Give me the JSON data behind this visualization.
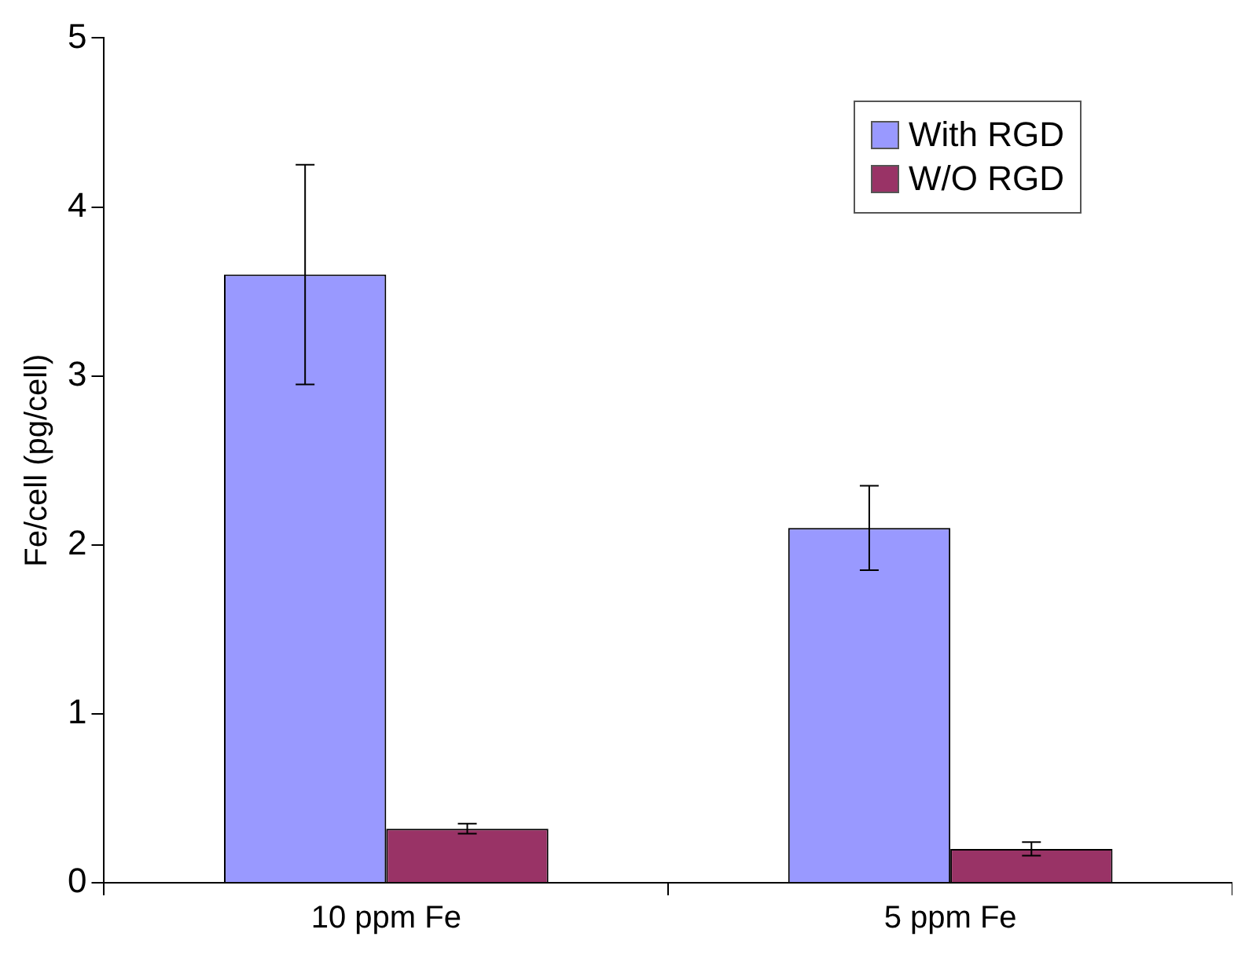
{
  "chart_data": {
    "type": "bar",
    "ylabel": "Fe/cell (pg/cell)",
    "categories": [
      "10 ppm Fe",
      "5 ppm Fe"
    ],
    "series": [
      {
        "name": "With RGD",
        "color": "#9999ff",
        "values": [
          3.6,
          2.1
        ],
        "errors": [
          0.65,
          0.25
        ]
      },
      {
        "name": "W/O RGD",
        "color": "#993366",
        "values": [
          0.32,
          0.2
        ],
        "errors": [
          0.03,
          0.04
        ]
      }
    ],
    "ylim": [
      0,
      5
    ],
    "yticks": [
      0,
      1,
      2,
      3,
      4,
      5
    ],
    "grid": false,
    "legend": "top right"
  }
}
